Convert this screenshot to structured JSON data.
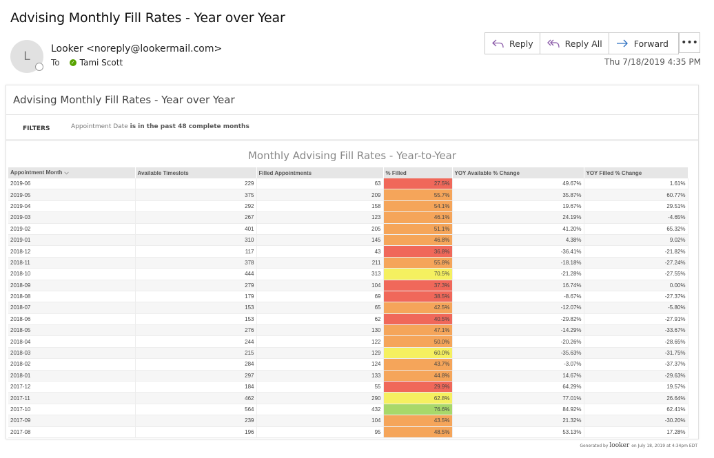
{
  "email": {
    "subject": "Advising Monthly Fill Rates - Year over Year",
    "avatar_initial": "L",
    "sender": "Looker <noreply@lookermail.com>",
    "to_label": "To",
    "recipient": "Tami Scott",
    "datetime": "Thu 7/18/2019 4:35 PM",
    "actions": {
      "reply": "Reply",
      "reply_all": "Reply All",
      "forward": "Forward",
      "more": "•••"
    }
  },
  "report": {
    "title": "Advising Monthly Fill Rates - Year over Year",
    "filters_label": "FILTERS",
    "filter_field": "Appointment Date",
    "filter_condition": "is in the past 48 complete months",
    "viz_title": "Monthly Advising Fill Rates - Year-to-Year",
    "columns": [
      "Appointment Month",
      "Available Timeslots",
      "Filled Appointments",
      "% Filled",
      "YOY Available % Change",
      "YOY Filled % Change"
    ],
    "rows": [
      [
        "2019-06",
        "229",
        "63",
        "27.5%",
        "49.67%",
        "1.61%"
      ],
      [
        "2019-05",
        "375",
        "209",
        "55.7%",
        "35.87%",
        "60.77%"
      ],
      [
        "2019-04",
        "292",
        "158",
        "54.1%",
        "19.67%",
        "29.51%"
      ],
      [
        "2019-03",
        "267",
        "123",
        "46.1%",
        "24.19%",
        "-4.65%"
      ],
      [
        "2019-02",
        "401",
        "205",
        "51.1%",
        "41.20%",
        "65.32%"
      ],
      [
        "2019-01",
        "310",
        "145",
        "46.8%",
        "4.38%",
        "9.02%"
      ],
      [
        "2018-12",
        "117",
        "43",
        "36.8%",
        "-36.41%",
        "-21.82%"
      ],
      [
        "2018-11",
        "378",
        "211",
        "55.8%",
        "-18.18%",
        "-27.24%"
      ],
      [
        "2018-10",
        "444",
        "313",
        "70.5%",
        "-21.28%",
        "-27.55%"
      ],
      [
        "2018-09",
        "279",
        "104",
        "37.3%",
        "16.74%",
        "0.00%"
      ],
      [
        "2018-08",
        "179",
        "69",
        "38.5%",
        "-8.67%",
        "-27.37%"
      ],
      [
        "2018-07",
        "153",
        "65",
        "42.5%",
        "-12.07%",
        "-5.80%"
      ],
      [
        "2018-06",
        "153",
        "62",
        "40.5%",
        "-29.82%",
        "-27.91%"
      ],
      [
        "2018-05",
        "276",
        "130",
        "47.1%",
        "-14.29%",
        "-33.67%"
      ],
      [
        "2018-04",
        "244",
        "122",
        "50.0%",
        "-20.26%",
        "-28.65%"
      ],
      [
        "2018-03",
        "215",
        "129",
        "60.0%",
        "-35.63%",
        "-31.75%"
      ],
      [
        "2018-02",
        "284",
        "124",
        "43.7%",
        "-3.07%",
        "-37.37%"
      ],
      [
        "2018-01",
        "297",
        "133",
        "44.8%",
        "14.67%",
        "-29.63%"
      ],
      [
        "2017-12",
        "184",
        "55",
        "29.9%",
        "64.29%",
        "19.57%"
      ],
      [
        "2017-11",
        "462",
        "290",
        "62.8%",
        "77.01%",
        "26.64%"
      ],
      [
        "2017-10",
        "564",
        "432",
        "76.6%",
        "84.92%",
        "62.41%"
      ],
      [
        "2017-09",
        "239",
        "104",
        "43.5%",
        "21.32%",
        "-30.20%"
      ],
      [
        "2017-08",
        "196",
        "95",
        "48.5%",
        "53.13%",
        "17.28%"
      ]
    ],
    "fill_colors": {
      "low": "#f0685a",
      "mid": "#f5a55a",
      "high": "#f5f060",
      "top": "#a8d86a"
    }
  },
  "footer": {
    "prefix": "Generated by",
    "brand": "looker",
    "suffix": "on July 18, 2019 at 4:34pm EDT"
  }
}
